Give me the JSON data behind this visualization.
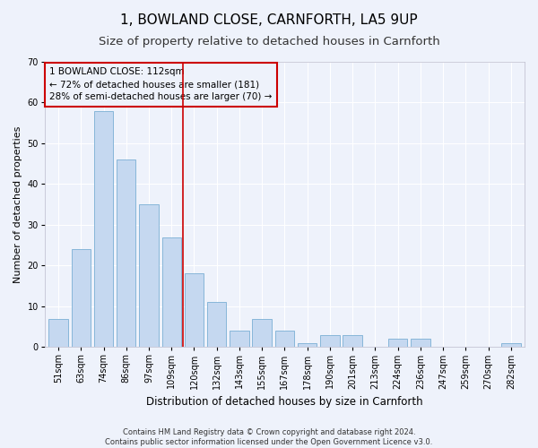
{
  "title": "1, BOWLAND CLOSE, CARNFORTH, LA5 9UP",
  "subtitle": "Size of property relative to detached houses in Carnforth",
  "xlabel": "Distribution of detached houses by size in Carnforth",
  "ylabel": "Number of detached properties",
  "categories": [
    "51sqm",
    "63sqm",
    "74sqm",
    "86sqm",
    "97sqm",
    "109sqm",
    "120sqm",
    "132sqm",
    "143sqm",
    "155sqm",
    "167sqm",
    "178sqm",
    "190sqm",
    "201sqm",
    "213sqm",
    "224sqm",
    "236sqm",
    "247sqm",
    "259sqm",
    "270sqm",
    "282sqm"
  ],
  "values": [
    7,
    24,
    58,
    46,
    35,
    27,
    18,
    11,
    4,
    7,
    4,
    1,
    3,
    3,
    0,
    2,
    2,
    0,
    0,
    0,
    1
  ],
  "bar_color": "#c5d8f0",
  "bar_edge_color": "#7aafd4",
  "vline_x": 5.5,
  "vline_color": "#cc0000",
  "annotation_line1": "1 BOWLAND CLOSE: 112sqm",
  "annotation_line2": "← 72% of detached houses are smaller (181)",
  "annotation_line3": "28% of semi-detached houses are larger (70) →",
  "annotation_box_color": "#cc0000",
  "ylim": [
    0,
    70
  ],
  "background_color": "#eef2fb",
  "grid_color": "#ffffff",
  "footer": "Contains HM Land Registry data © Crown copyright and database right 2024.\nContains public sector information licensed under the Open Government Licence v3.0.",
  "title_fontsize": 11,
  "subtitle_fontsize": 9.5,
  "ylabel_fontsize": 8,
  "xlabel_fontsize": 8.5,
  "tick_fontsize": 7,
  "annotation_fontsize": 7.5,
  "footer_fontsize": 6
}
